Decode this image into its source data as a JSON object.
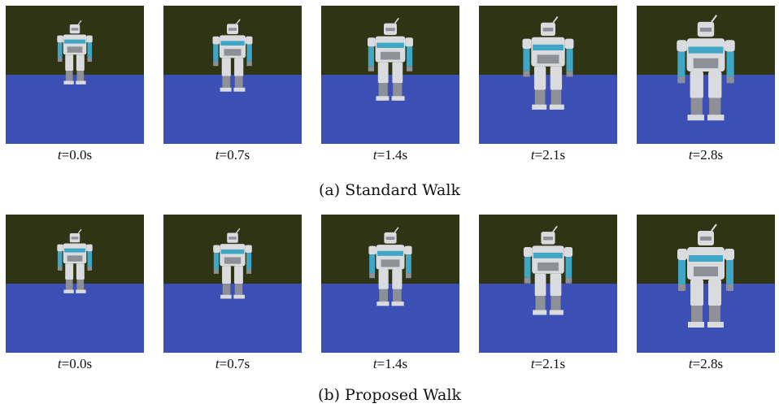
{
  "rows": [
    {
      "caption": "(a) Standard Walk",
      "frames": [
        {
          "t_var": "t",
          "t_value": "=0.0s",
          "scale": 0.62
        },
        {
          "t_var": "t",
          "t_value": "=0.7s",
          "scale": 0.7
        },
        {
          "t_var": "t",
          "t_value": "=1.4s",
          "scale": 0.8
        },
        {
          "t_var": "t",
          "t_value": "=2.1s",
          "scale": 0.9
        },
        {
          "t_var": "t",
          "t_value": "=2.8s",
          "scale": 1.02
        }
      ]
    },
    {
      "caption": "(b) Proposed Walk",
      "frames": [
        {
          "t_var": "t",
          "t_value": "=0.0s",
          "scale": 0.62
        },
        {
          "t_var": "t",
          "t_value": "=0.7s",
          "scale": 0.68
        },
        {
          "t_var": "t",
          "t_value": "=1.4s",
          "scale": 0.76
        },
        {
          "t_var": "t",
          "t_value": "=2.1s",
          "scale": 0.86
        },
        {
          "t_var": "t",
          "t_value": "=2.8s",
          "scale": 1.0
        }
      ]
    }
  ],
  "colors": {
    "sky": "#2f3414",
    "floor": "#3c4fb4",
    "robot_body": "#d9dbde",
    "robot_shadow": "#8d9096",
    "robot_accent": "#3fa6c6"
  }
}
